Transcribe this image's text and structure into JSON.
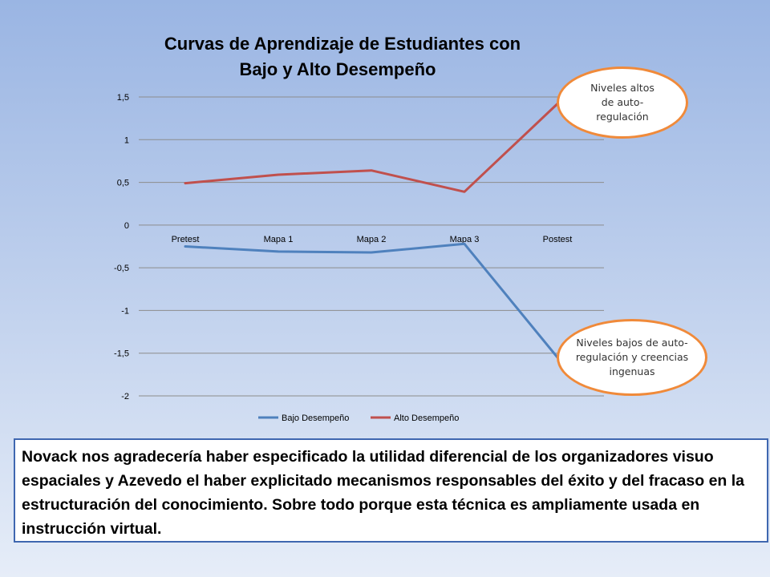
{
  "chart_data": {
    "type": "line",
    "title": "Curvas de Aprendizaje de Estudiantes con Bajo y Alto Desempeño",
    "title_lines": [
      "Curvas de Aprendizaje de Estudiantes con",
      "Bajo y Alto Desempeño"
    ],
    "categories": [
      "Pretest",
      "Mapa 1",
      "Mapa 2",
      "Mapa 3",
      "Postest"
    ],
    "y_ticks": [
      "1,5",
      "1",
      "0,5",
      "0",
      "-0,5",
      "-1",
      "-1,5",
      "-2"
    ],
    "ylim": [
      -2,
      1.5
    ],
    "grid": true,
    "legend_position": "bottom",
    "series": [
      {
        "name": "Bajo Desempeño",
        "color": "#4f81bd",
        "values": [
          -0.25,
          -0.31,
          -0.32,
          -0.22,
          -1.55
        ]
      },
      {
        "name": "Alto Desempeño",
        "color": "#c0504d",
        "values": [
          0.49,
          0.59,
          0.64,
          0.39,
          1.42
        ]
      }
    ]
  },
  "callouts": {
    "high": "Niveles altos de auto-regulación",
    "low": "Niveles bajos de auto-regulación y creencias ingenuas"
  },
  "note": "Novack  nos agradecería haber especificado la utilidad diferencial de los organizadores visuo espaciales y Azevedo el haber explicitado mecanismos responsables del éxito y del fracaso en la estructuración del conocimiento. Sobre todo porque esta técnica es ampliamente usada en instrucción virtual."
}
